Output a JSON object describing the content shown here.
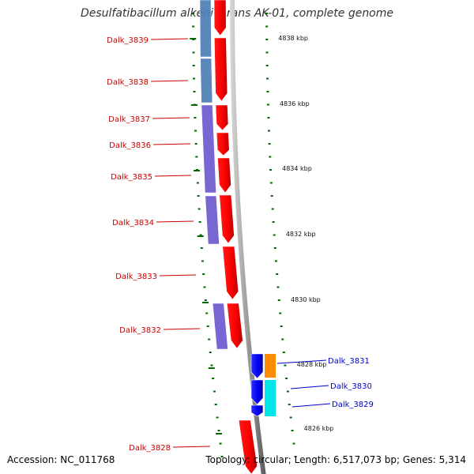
{
  "header": {
    "title": "Desulfatibacillum alkenivorans AK-01, complete genome"
  },
  "footer": {
    "accession": "Accession: NC_011768",
    "topology": "Topology: circular; Length: 6,517,073 bp; Genes: 5,314"
  },
  "colors": {
    "forward_gene": "#ff0000",
    "reverse_gene": "#0000ee",
    "cog_blue": "#4f7fb7",
    "cog_purple": "#6b5bd0",
    "cog_orange": "#ff8c00",
    "cog_cyan": "#00e5e5",
    "scale_tick": "#006600",
    "backbone": "#999999",
    "label_forward": "#cc0000",
    "label_reverse": "#0000cc"
  },
  "scale_labels": [
    "4838 kbp",
    "4836 kbp",
    "4834 kbp",
    "4832 kbp",
    "4830 kbp",
    "4828 kbp",
    "4826 kbp"
  ],
  "forward_genes": [
    {
      "label": "Dalk_3839",
      "cog": "cog_blue"
    },
    {
      "label": "Dalk_3838",
      "cog": "cog_blue"
    },
    {
      "label": "Dalk_3837",
      "cog": "cog_purple"
    },
    {
      "label": "Dalk_3836",
      "cog": "cog_purple"
    },
    {
      "label": "Dalk_3835",
      "cog": "cog_purple"
    },
    {
      "label": "Dalk_3834",
      "cog": "cog_purple"
    },
    {
      "label": "Dalk_3833",
      "cog": ""
    },
    {
      "label": "Dalk_3832",
      "cog": "cog_purple"
    },
    {
      "label": "Dalk_3828",
      "cog": ""
    }
  ],
  "reverse_genes": [
    {
      "label": "Dalk_3831",
      "cog": "cog_orange"
    },
    {
      "label": "Dalk_3830",
      "cog": "cog_cyan"
    },
    {
      "label": "Dalk_3829",
      "cog": "cog_cyan"
    }
  ]
}
